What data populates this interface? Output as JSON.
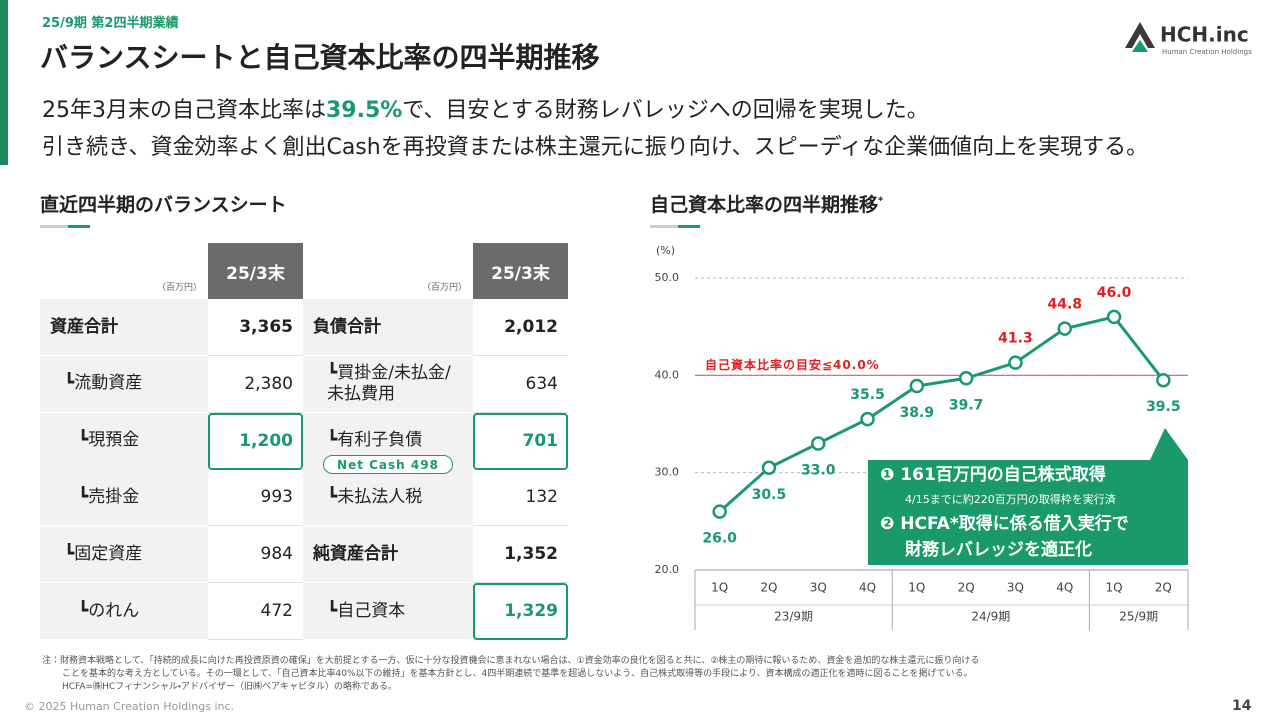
{
  "header": {
    "label": "25/9期 第2四半期業績",
    "title": "バランスシートと自己資本比率の四半期推移",
    "logo": "HCH.inc",
    "logo_sub": "Human Creation Holdings"
  },
  "lead": {
    "line1_pre": "25年3月末の自己資本比率は",
    "line1_highlight": "39.5%",
    "line1_post": "で、目安とする財務レバレッジへの回帰を実現した。",
    "line2": "引き続き、資金効率よく創出Cashを再投資または株主還元に振り向け、スピーディな企業価値向上を実現する。"
  },
  "balance_sheet": {
    "title": "直近四半期のバランスシート",
    "unit_left": "（百万円）",
    "unit_right": "（百万円）",
    "column_left": "25/3末",
    "column_right": "25/3末",
    "rows": [
      [
        "資産合計",
        "3,365",
        "負債合計",
        "2,012"
      ],
      [
        "┗流動資産",
        "2,380",
        "┗買掛金/未払金/未払費用",
        "634"
      ],
      [
        "┗現預金",
        "1,200",
        "┗有利子負債",
        "701"
      ],
      [
        "┗売掛金",
        "993",
        "┗未払法人税",
        "132"
      ],
      [
        "┗固定資産",
        "984",
        "純資産合計",
        "1,352"
      ],
      [
        "┗のれん",
        "472",
        "┗自己資本",
        "1,329"
      ]
    ],
    "net_cash": "Net Cash 498"
  },
  "chart_data": {
    "type": "line",
    "title": "自己資本比率の四半期推移",
    "title_mark": "*",
    "y_unit": "(%)",
    "categories": [
      "1Q",
      "2Q",
      "3Q",
      "4Q",
      "1Q",
      "2Q",
      "3Q",
      "4Q",
      "1Q",
      "2Q"
    ],
    "groups": [
      {
        "label": "23/9期",
        "span": 4
      },
      {
        "label": "24/9期",
        "span": 4
      },
      {
        "label": "25/9期",
        "span": 2
      }
    ],
    "values": [
      26.0,
      30.5,
      33.0,
      35.5,
      38.9,
      39.7,
      41.3,
      44.8,
      46.0,
      39.5
    ],
    "value_labels": [
      "26.0",
      "30.5",
      "33.0",
      "35.5",
      "38.9",
      "39.7",
      "41.3",
      "44.8",
      "46.0",
      "39.5"
    ],
    "value_label_colors": [
      "#1a9a6a",
      "#1a9a6a",
      "#1a9a6a",
      "#1a9a6a",
      "#1a9a6a",
      "#1a9a6a",
      "#e02020",
      "#e02020",
      "#e02020",
      "#1a9a6a"
    ],
    "color": "#1a9a6a",
    "ylim": [
      20,
      50
    ],
    "yticks": [
      {
        "value": 20,
        "label": "20.0"
      },
      {
        "value": 30,
        "label": "30.0"
      },
      {
        "value": 40,
        "label": "40.0"
      },
      {
        "value": 50,
        "label": "50.0"
      }
    ],
    "grid": true,
    "reference_line": {
      "value": 40,
      "label": "自己資本比率の目安≦40.0%",
      "color": "#e06060"
    },
    "annotation": [
      "❶ 161百万円の自己株式取得",
      "4/15までに約220百万円の取得枠を実行済",
      "❷ HCFA*取得に係る借入実行で",
      "財務レバレッジを適正化"
    ]
  },
  "footnote": [
    "注：財務資本戦略として、「持続的成長に向けた再投資原資の確保」を大前提とする一方、仮に十分な投資機会に恵まれない場合は、①資金効率の良化を図ると共に、②株主の期待に報いるため、資金を追加的な株主還元に振り向ける",
    "ことを基本的な考え方としている。その一環として、「自己資本比率40%以下の維持」を基本方針とし、4四半期連続で基準を超過しないよう、自己株式取得等の手段により、資本構成の適正化を適時に図ることを掲げている。",
    "HCFA=㈱HCフィナンシャル・アドバイザー（旧㈱ベアキャピタル）の略称である。"
  ],
  "copyright": "© 2025 Human Creation Holdings inc.",
  "page_number": "14"
}
